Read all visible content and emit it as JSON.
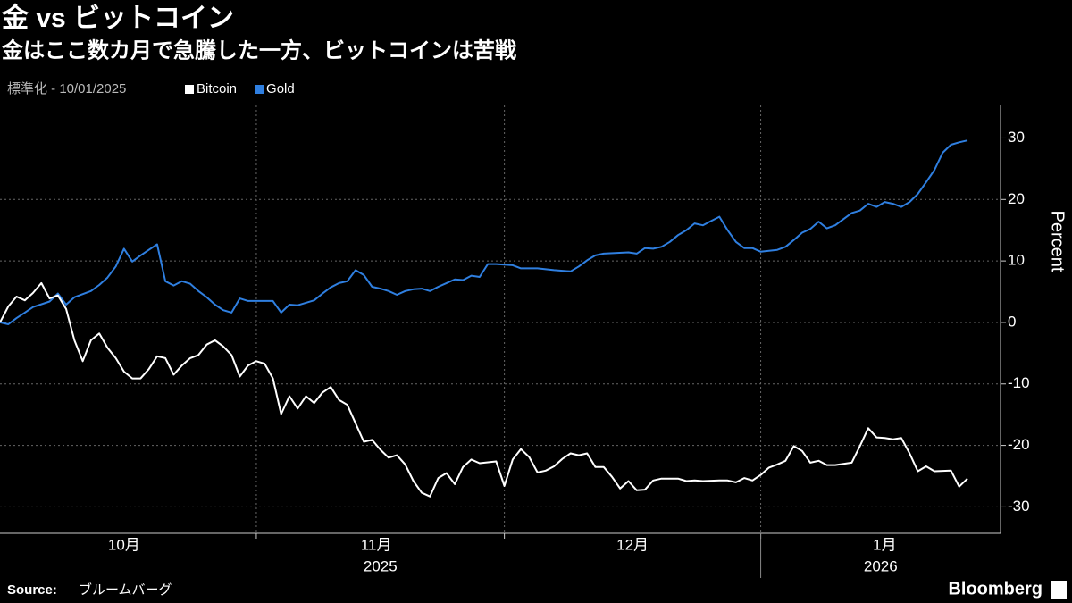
{
  "chart_data": {
    "type": "line",
    "title": "金 vs ビットコイン",
    "subtitle": "金はここ数カ月で急騰した一方、ビットコインは苦戦",
    "legend_title": "標準化 - 10/01/2025",
    "y_label": "Percent",
    "source_label": "Source:",
    "source": "ブルームバーグ",
    "brand": "Bloomberg",
    "xlim": [
      0,
      121
    ],
    "month_boundaries": [
      31,
      61,
      92
    ],
    "month_labels": [
      {
        "value": 15,
        "label": "10月"
      },
      {
        "value": 45.5,
        "label": "11月"
      },
      {
        "value": 76.5,
        "label": "12月"
      },
      {
        "value": 107,
        "label": "1月"
      }
    ],
    "year_labels": [
      {
        "value": 46,
        "label": "2025"
      },
      {
        "value": 106.5,
        "label": "2026"
      }
    ],
    "year_divider": 92,
    "ylim": [
      -34.3,
      35.3
    ],
    "yticks": [
      30,
      20,
      10,
      0,
      -10,
      -20,
      -30
    ],
    "grid": true,
    "series": [
      {
        "name": "Bitcoin",
        "color": "#ffffff",
        "x": [
          0,
          1,
          2,
          3,
          4,
          5,
          6,
          7,
          8,
          9,
          10,
          11,
          12,
          13,
          14,
          15,
          16,
          17,
          18,
          19,
          20,
          21,
          22,
          23,
          24,
          25,
          26,
          27,
          28,
          29,
          30,
          31,
          32,
          33,
          34,
          35,
          36,
          37,
          38,
          39,
          40,
          41,
          42,
          43,
          44,
          45,
          46,
          47,
          48,
          49,
          50,
          51,
          52,
          53,
          54,
          55,
          56,
          57,
          58,
          60,
          61,
          62,
          63,
          64,
          65,
          66,
          67,
          68,
          69,
          70,
          71,
          72,
          73,
          74,
          75,
          76,
          77,
          78,
          79,
          80,
          81,
          82,
          83,
          84,
          85,
          87,
          88,
          89,
          90,
          91,
          92,
          93,
          94,
          95,
          96,
          97,
          98,
          99,
          100,
          101,
          103,
          104,
          105,
          106,
          107,
          108,
          109,
          110,
          111,
          112,
          113,
          115,
          116,
          117
        ],
        "values": [
          0,
          2.6,
          4.2,
          3.6,
          4.8,
          6.4,
          3.9,
          4.4,
          2.2,
          -2.9,
          -6.3,
          -2.9,
          -1.8,
          -4.1,
          -5.8,
          -8.0,
          -9.1,
          -9.1,
          -7.6,
          -5.5,
          -5.8,
          -8.5,
          -7.0,
          -5.8,
          -5.3,
          -3.6,
          -2.9,
          -3.9,
          -5.3,
          -8.8,
          -7.0,
          -6.3,
          -6.7,
          -9.1,
          -14.9,
          -12.0,
          -14.0,
          -12.0,
          -13.1,
          -11.4,
          -10.5,
          -12.6,
          -13.4,
          -16.4,
          -19.4,
          -19.1,
          -20.7,
          -22.0,
          -21.6,
          -23.1,
          -25.8,
          -27.7,
          -28.3,
          -25.3,
          -24.5,
          -26.3,
          -23.5,
          -22.3,
          -22.9,
          -22.6,
          -26.6,
          -22.3,
          -20.6,
          -21.9,
          -24.4,
          -24.1,
          -23.4,
          -22.2,
          -21.3,
          -21.6,
          -21.3,
          -23.5,
          -23.5,
          -25.1,
          -27.0,
          -25.8,
          -27.3,
          -27.2,
          -25.7,
          -25.4,
          -25.4,
          -25.4,
          -25.8,
          -25.7,
          -25.8,
          -25.7,
          -25.7,
          -26.0,
          -25.3,
          -25.7,
          -24.8,
          -23.6,
          -23.1,
          -22.5,
          -20.1,
          -20.9,
          -22.8,
          -22.5,
          -23.2,
          -23.2,
          -22.8,
          -20.1,
          -17.2,
          -18.7,
          -18.8,
          -19.0,
          -18.8,
          -21.3,
          -24.2,
          -23.4,
          -24.2,
          -24.1,
          -26.7,
          -25.4
        ]
      },
      {
        "name": "Gold",
        "color": "#2f7fe0",
        "x": [
          0,
          1,
          2,
          3,
          4,
          6,
          7,
          8,
          9,
          11,
          12,
          13,
          14,
          15,
          16,
          17,
          18,
          19,
          20,
          21,
          22,
          23,
          24,
          25,
          26,
          27,
          28,
          29,
          30,
          32,
          33,
          34,
          35,
          36,
          38,
          39,
          40,
          41,
          42,
          43,
          44,
          45,
          46,
          47,
          48,
          49,
          50,
          51,
          52,
          53,
          54,
          55,
          56,
          57,
          58,
          59,
          60,
          62,
          63,
          65,
          67,
          69,
          70,
          71,
          72,
          73,
          76,
          77,
          78,
          79,
          80,
          81,
          82,
          83,
          84,
          85,
          86,
          87,
          88,
          89,
          90,
          91,
          92,
          94,
          95,
          96,
          97,
          98,
          99,
          100,
          101,
          102,
          103,
          104,
          105,
          106,
          107,
          108,
          109,
          110,
          111,
          112,
          113,
          114,
          115,
          116,
          117
        ],
        "values": [
          0,
          -0.3,
          0.7,
          1.6,
          2.5,
          3.4,
          4.7,
          2.9,
          4.1,
          5.1,
          6.1,
          7.3,
          9.1,
          12.0,
          9.9,
          10.9,
          11.8,
          12.7,
          6.7,
          6.0,
          6.7,
          6.3,
          5.1,
          4.1,
          2.9,
          2.0,
          1.6,
          3.9,
          3.5,
          3.5,
          3.5,
          1.6,
          2.9,
          2.8,
          3.6,
          4.7,
          5.7,
          6.4,
          6.7,
          8.5,
          7.7,
          5.8,
          5.5,
          5.1,
          4.5,
          5.1,
          5.4,
          5.5,
          5.1,
          5.8,
          6.4,
          7.0,
          6.9,
          7.6,
          7.4,
          9.5,
          9.5,
          9.3,
          8.8,
          8.8,
          8.5,
          8.3,
          9.1,
          10.1,
          10.9,
          11.2,
          11.4,
          11.2,
          12.1,
          12.0,
          12.3,
          13.1,
          14.2,
          15.0,
          16.1,
          15.8,
          16.5,
          17.2,
          15.0,
          13.1,
          12.1,
          12.1,
          11.5,
          11.8,
          12.3,
          13.4,
          14.6,
          15.2,
          16.4,
          15.3,
          15.8,
          16.8,
          17.8,
          18.2,
          19.3,
          18.8,
          19.6,
          19.3,
          18.8,
          19.6,
          20.9,
          22.8,
          24.8,
          27.6,
          28.9,
          29.3,
          29.6
        ]
      }
    ]
  }
}
